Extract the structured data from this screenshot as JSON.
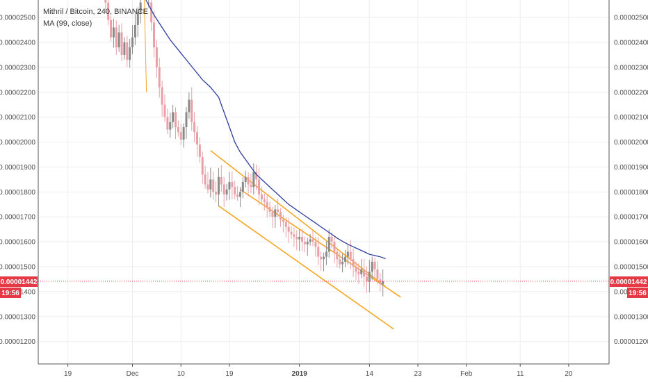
{
  "header": {
    "title": "Mithril / Bitcoin, 240, BINANCE",
    "indicator": "MA (99, close)"
  },
  "colors": {
    "up_candle": "#8a8a8a",
    "down_candle": "#e8a0a6",
    "ma_line": "#2b3d9e",
    "channel": "#f5a623",
    "price_line": "#e53945",
    "grid": "#eeeeee",
    "axis": "#555555"
  },
  "price_tag": {
    "value": "0.00001442",
    "countdown": "19:56",
    "color": "#e53945"
  },
  "chart_data": {
    "type": "line",
    "title": "Mithril / Bitcoin, 240, BINANCE",
    "xlabel": "",
    "ylabel": "",
    "ylim": [
      1.11e-05,
      2.57e-05
    ],
    "xlim": [
      -18,
      48
    ],
    "grid": true,
    "legend_placement": "top-left",
    "y_ticks": [
      "0.00002500",
      "0.00002400",
      "0.00002300",
      "0.00002200",
      "0.00002100",
      "0.00002000",
      "0.00001900",
      "0.00001800",
      "0.00001700",
      "0.00001600",
      "0.00001500",
      "0.00001400",
      "0.00001300",
      "0.00001200"
    ],
    "y_tick_values": [
      2.5e-05,
      2.4e-05,
      2.3e-05,
      2.2e-05,
      2.1e-05,
      2e-05,
      1.9e-05,
      1.8e-05,
      1.7e-05,
      1.6e-05,
      1.5e-05,
      1.4e-05,
      1.3e-05,
      1.2e-05
    ],
    "x_ticks": [
      {
        "label": "19",
        "day": -12,
        "bold": false
      },
      {
        "label": "Dec",
        "day": 0,
        "bold": false
      },
      {
        "label": "10",
        "day": 9,
        "bold": false
      },
      {
        "label": "19",
        "day": 18,
        "bold": false
      },
      {
        "label": "2019",
        "day": 31,
        "bold": true
      },
      {
        "label": "14",
        "day": 44,
        "bold": false
      },
      {
        "label": "23",
        "day": 53,
        "bold": false
      },
      {
        "label": "Feb",
        "day": 62,
        "bold": false
      },
      {
        "label": "11",
        "day": 72,
        "bold": false
      },
      {
        "label": "20",
        "day": 81,
        "bold": false
      }
    ],
    "x_day_range": [
      -17.5,
      88.5
    ],
    "series": [
      {
        "kind": "candles",
        "close_points": [
          [
            -5.0,
            2.56e-05
          ],
          [
            -4.5,
            2.49e-05
          ],
          [
            -4.0,
            2.42e-05
          ],
          [
            -3.5,
            2.46e-05
          ],
          [
            -3.0,
            2.38e-05
          ],
          [
            -2.5,
            2.44e-05
          ],
          [
            -2.0,
            2.35e-05
          ],
          [
            -1.5,
            2.4e-05
          ],
          [
            -1.0,
            2.33e-05
          ],
          [
            -0.5,
            2.38e-05
          ],
          [
            0.0,
            2.42e-05
          ],
          [
            0.5,
            2.47e-05
          ],
          [
            1.0,
            2.52e-05
          ],
          [
            1.5,
            2.56e-05
          ],
          [
            3.0,
            2.56e-05
          ],
          [
            3.5,
            2.48e-05
          ],
          [
            4.0,
            2.38e-05
          ],
          [
            4.5,
            2.3e-05
          ],
          [
            5.0,
            2.22e-05
          ],
          [
            5.5,
            2.15e-05
          ],
          [
            6.0,
            2.1e-05
          ],
          [
            6.5,
            2.05e-05
          ],
          [
            7.0,
            2.08e-05
          ],
          [
            7.5,
            2.12e-05
          ],
          [
            8.0,
            2.06e-05
          ],
          [
            8.5,
            2.04e-05
          ],
          [
            9.0,
            2.01e-05
          ],
          [
            9.5,
            2.06e-05
          ],
          [
            10.0,
            2.12e-05
          ],
          [
            10.5,
            2.17e-05
          ],
          [
            11.0,
            2.08e-05
          ],
          [
            11.5,
            2.04e-05
          ],
          [
            12.0,
            1.99e-05
          ],
          [
            12.5,
            1.94e-05
          ],
          [
            13.0,
            1.87e-05
          ],
          [
            13.5,
            1.83e-05
          ],
          [
            14.0,
            1.81e-05
          ],
          [
            14.5,
            1.85e-05
          ],
          [
            15.0,
            1.8e-05
          ],
          [
            15.5,
            1.79e-05
          ],
          [
            16.0,
            1.86e-05
          ],
          [
            16.5,
            1.83e-05
          ],
          [
            17.0,
            1.79e-05
          ],
          [
            17.5,
            1.81e-05
          ],
          [
            18.0,
            1.84e-05
          ],
          [
            18.5,
            1.82e-05
          ],
          [
            19.0,
            1.79e-05
          ],
          [
            19.5,
            1.78e-05
          ],
          [
            20.0,
            1.8e-05
          ],
          [
            20.5,
            1.84e-05
          ],
          [
            21.0,
            1.86e-05
          ],
          [
            21.5,
            1.83e-05
          ],
          [
            22.0,
            1.82e-05
          ],
          [
            22.5,
            1.88e-05
          ],
          [
            23.0,
            1.85e-05
          ],
          [
            23.5,
            1.79e-05
          ],
          [
            24.0,
            1.77e-05
          ],
          [
            24.5,
            1.76e-05
          ],
          [
            25.0,
            1.74e-05
          ],
          [
            25.5,
            1.72e-05
          ],
          [
            26.0,
            1.7e-05
          ],
          [
            26.5,
            1.73e-05
          ],
          [
            27.0,
            1.72e-05
          ],
          [
            27.5,
            1.69e-05
          ],
          [
            28.0,
            1.68e-05
          ],
          [
            28.5,
            1.66e-05
          ],
          [
            29.0,
            1.64e-05
          ],
          [
            29.5,
            1.63e-05
          ],
          [
            30.0,
            1.62e-05
          ],
          [
            30.5,
            1.61e-05
          ],
          [
            31.0,
            1.62e-05
          ],
          [
            31.5,
            1.6e-05
          ],
          [
            32.0,
            1.59e-05
          ],
          [
            32.5,
            1.6e-05
          ],
          [
            33.0,
            1.61e-05
          ],
          [
            33.5,
            1.6e-05
          ],
          [
            34.0,
            1.58e-05
          ],
          [
            34.5,
            1.54e-05
          ],
          [
            35.0,
            1.53e-05
          ],
          [
            35.5,
            1.54e-05
          ],
          [
            36.0,
            1.56e-05
          ],
          [
            36.5,
            1.62e-05
          ],
          [
            37.0,
            1.6e-05
          ],
          [
            37.5,
            1.56e-05
          ],
          [
            38.0,
            1.53e-05
          ],
          [
            38.5,
            1.51e-05
          ],
          [
            39.0,
            1.52e-05
          ],
          [
            39.5,
            1.54e-05
          ],
          [
            40.0,
            1.56e-05
          ],
          [
            40.5,
            1.53e-05
          ],
          [
            41.0,
            1.5e-05
          ],
          [
            41.5,
            1.48e-05
          ],
          [
            42.0,
            1.47e-05
          ],
          [
            42.5,
            1.49e-05
          ],
          [
            43.0,
            1.46e-05
          ],
          [
            43.5,
            1.44e-05
          ],
          [
            44.0,
            1.48e-05
          ],
          [
            44.5,
            1.52e-05
          ],
          [
            45.0,
            1.49e-05
          ],
          [
            45.5,
            1.45e-05
          ],
          [
            46.0,
            1.43e-05
          ],
          [
            46.5,
            1.442e-05
          ]
        ]
      },
      {
        "kind": "ma",
        "points": [
          [
            2.5,
            2.57e-05
          ],
          [
            4.0,
            2.51e-05
          ],
          [
            5.5,
            2.46e-05
          ],
          [
            7.0,
            2.41e-05
          ],
          [
            8.5,
            2.37e-05
          ],
          [
            10.0,
            2.33e-05
          ],
          [
            11.5,
            2.29e-05
          ],
          [
            13.0,
            2.25e-05
          ],
          [
            14.5,
            2.22e-05
          ],
          [
            16.0,
            2.18e-05
          ],
          [
            17.0,
            2.12e-05
          ],
          [
            18.0,
            2.06e-05
          ],
          [
            19.0,
            2e-05
          ],
          [
            20.0,
            1.96e-05
          ],
          [
            21.0,
            1.93e-05
          ],
          [
            22.0,
            1.9e-05
          ],
          [
            23.0,
            1.87e-05
          ],
          [
            24.0,
            1.85e-05
          ],
          [
            25.0,
            1.83e-05
          ],
          [
            26.0,
            1.81e-05
          ],
          [
            27.0,
            1.79e-05
          ],
          [
            28.0,
            1.77e-05
          ],
          [
            29.0,
            1.75e-05
          ],
          [
            30.0,
            1.735e-05
          ],
          [
            31.0,
            1.72e-05
          ],
          [
            32.0,
            1.705e-05
          ],
          [
            33.0,
            1.69e-05
          ],
          [
            34.0,
            1.675e-05
          ],
          [
            35.0,
            1.66e-05
          ],
          [
            36.0,
            1.645e-05
          ],
          [
            37.0,
            1.63e-05
          ],
          [
            38.0,
            1.615e-05
          ],
          [
            39.0,
            1.602e-05
          ],
          [
            40.0,
            1.59e-05
          ],
          [
            41.0,
            1.58e-05
          ],
          [
            42.0,
            1.57e-05
          ],
          [
            43.0,
            1.56e-05
          ],
          [
            44.0,
            1.55e-05
          ],
          [
            45.0,
            1.545e-05
          ],
          [
            46.0,
            1.54e-05
          ],
          [
            47.0,
            1.532e-05
          ]
        ]
      },
      {
        "kind": "channel",
        "lines": [
          [
            [
              14.5,
              1.966e-05
            ],
            [
              47.0,
              1.42e-05
            ]
          ],
          [
            [
              20.0,
              1.81e-05
            ],
            [
              49.8,
              1.378e-05
            ]
          ],
          [
            [
              16.0,
              1.744e-05
            ],
            [
              48.5,
              1.25e-05
            ]
          ]
        ]
      }
    ]
  }
}
